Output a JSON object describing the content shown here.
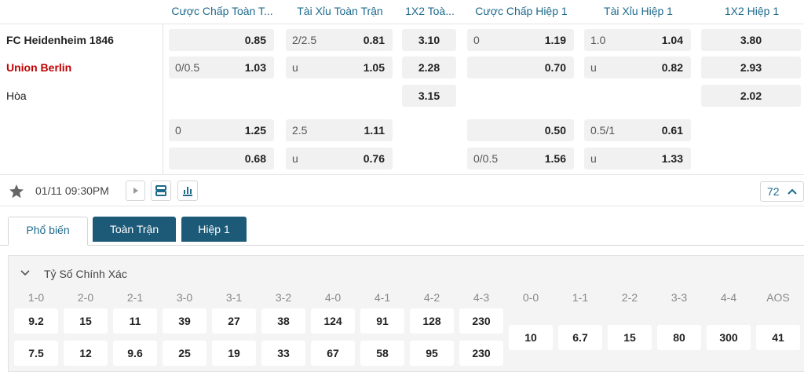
{
  "odds_table": {
    "headers": [
      "Cược Chấp Toàn T...",
      "Tài Xỉu Toàn Trận",
      "1X2 Toà...",
      "Cược Chấp Hiệp 1",
      "Tài Xỉu Hiệp 1",
      "1X2 Hiệp 1"
    ],
    "teams": [
      "FC Heidenheim 1846",
      "Union Berlin",
      "Hòa"
    ],
    "rows": [
      [
        {
          "odds": "0.85"
        },
        {
          "line": "2/2.5",
          "odds": "0.81"
        },
        {
          "odds": "3.10"
        },
        {
          "line": "0",
          "odds": "1.19"
        },
        {
          "line": "1.0",
          "odds": "1.04"
        },
        {
          "odds": "3.80"
        }
      ],
      [
        {
          "line": "0/0.5",
          "odds": "1.03"
        },
        {
          "line": "u",
          "odds": "1.05"
        },
        {
          "odds": "2.28"
        },
        {
          "odds": "0.70"
        },
        {
          "line": "u",
          "odds": "0.82"
        },
        {
          "odds": "2.93"
        }
      ],
      [
        null,
        null,
        {
          "odds": "3.15"
        },
        null,
        null,
        {
          "odds": "2.02"
        }
      ],
      [
        {
          "line": "0",
          "odds": "1.25"
        },
        {
          "line": "2.5",
          "odds": "1.11"
        },
        null,
        {
          "odds": "0.50"
        },
        {
          "line": "0.5/1",
          "odds": "0.61"
        },
        null
      ],
      [
        {
          "odds": "0.68"
        },
        {
          "line": "u",
          "odds": "0.76"
        },
        null,
        {
          "line": "0/0.5",
          "odds": "1.56"
        },
        {
          "line": "u",
          "odds": "1.33"
        },
        null
      ]
    ]
  },
  "match_bar": {
    "time": "01/11 09:30PM",
    "more_count": 72
  },
  "tabs": [
    "Phổ biến",
    "Toàn Trận",
    "Hiệp 1"
  ],
  "correct_score": {
    "title": "Tỷ Số Chính Xác",
    "columns": [
      {
        "label": "1-0",
        "values": [
          "9.2",
          "7.5"
        ]
      },
      {
        "label": "2-0",
        "values": [
          "15",
          "12"
        ]
      },
      {
        "label": "2-1",
        "values": [
          "11",
          "9.6"
        ]
      },
      {
        "label": "3-0",
        "values": [
          "39",
          "25"
        ]
      },
      {
        "label": "3-1",
        "values": [
          "27",
          "19"
        ]
      },
      {
        "label": "3-2",
        "values": [
          "38",
          "33"
        ]
      },
      {
        "label": "4-0",
        "values": [
          "124",
          "67"
        ]
      },
      {
        "label": "4-1",
        "values": [
          "91",
          "58"
        ]
      },
      {
        "label": "4-2",
        "values": [
          "128",
          "95"
        ]
      },
      {
        "label": "4-3",
        "values": [
          "230",
          "230"
        ]
      },
      {
        "label": "0-0",
        "values": [
          "10"
        ]
      },
      {
        "label": "1-1",
        "values": [
          "6.7"
        ]
      },
      {
        "label": "2-2",
        "values": [
          "15"
        ]
      },
      {
        "label": "3-3",
        "values": [
          "80"
        ]
      },
      {
        "label": "4-4",
        "values": [
          "300"
        ]
      },
      {
        "label": "AOS",
        "values": [
          "41"
        ]
      }
    ]
  }
}
